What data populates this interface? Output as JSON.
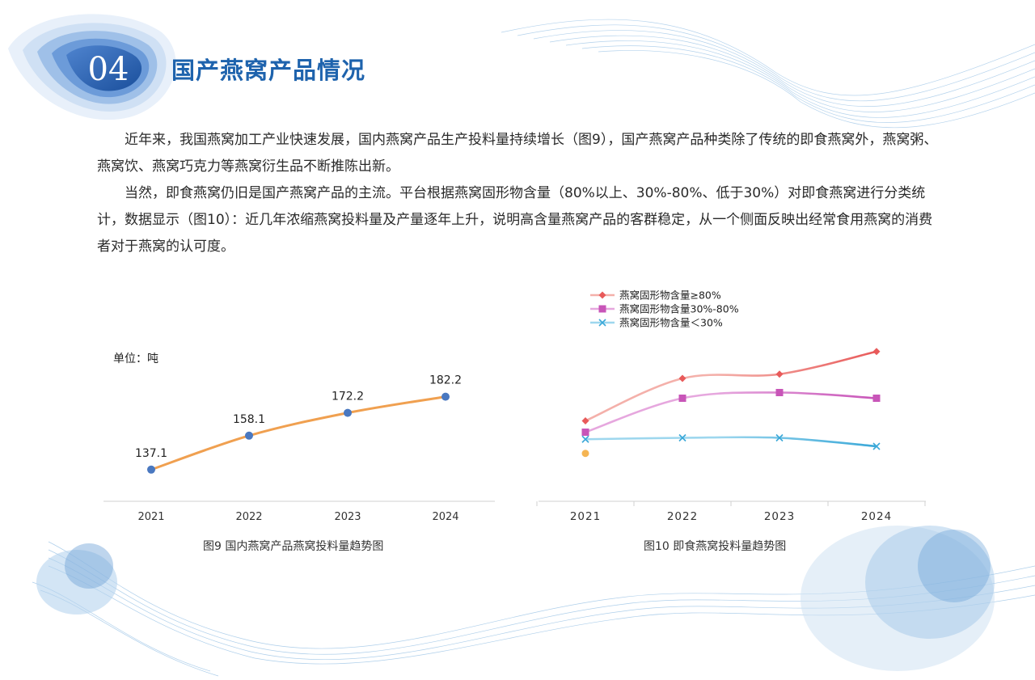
{
  "section": {
    "number": "04",
    "title": "国产燕窝产品情况"
  },
  "body": {
    "paragraphs": [
      "近年来，我国燕窝加工产业快速发展，国内燕窝产品生产投料量持续增长（图9），国产燕窝产品种类除了传统的即食燕窝外，燕窝粥、燕窝饮、燕窝巧克力等燕窝衍生品不断推陈出新。",
      "当然，即食燕窝仍旧是国产燕窝产品的主流。平台根据燕窝固形物含量（80%以上、30%-80%、低于30%）对即食燕窝进行分类统计，数据显示（图10）：近几年浓缩燕窝投料量及产量逐年上升，说明高含量燕窝产品的客群稳定，从一个侧面反映出经常食用燕窝的消费者对于燕窝的认可度。"
    ]
  },
  "colors": {
    "title_blue": "#1e63ad",
    "line_orange": "#f0a050",
    "dot_blue": "#4a78c0",
    "series_red": "#e85a5a",
    "series_magenta": "#c855b8",
    "series_cyan": "#3aa8d8"
  },
  "chart_data": [
    {
      "type": "line",
      "unit_label": "单位：吨",
      "caption": "图9  国内燕窝产品燕窝投料量趋势图",
      "categories": [
        "2021",
        "2022",
        "2023",
        "2024"
      ],
      "values": [
        137.1,
        158.1,
        172.2,
        182.2
      ],
      "data_labels": [
        "137.1",
        "158.1",
        "172.2",
        "182.2"
      ],
      "ylim": [
        130,
        190
      ],
      "grid": false
    },
    {
      "type": "line",
      "caption": "图10  即食燕窝投料量趋势图",
      "categories": [
        "2021",
        "2022",
        "2023",
        "2024"
      ],
      "legend_position": "top",
      "ylim": [
        0,
        100
      ],
      "grid": false,
      "series": [
        {
          "name": "燕窝固形物含量≥80%",
          "marker": "diamond",
          "values": [
            50,
            80,
            83,
            99
          ]
        },
        {
          "name": "燕窝固形物含量30%-80%",
          "marker": "square",
          "values": [
            42,
            66,
            70,
            66
          ]
        },
        {
          "name": "燕窝固形物含量＜30%",
          "marker": "x",
          "values": [
            37,
            38,
            38,
            32
          ]
        }
      ],
      "extra_point": {
        "x": "2021",
        "value": 27
      }
    }
  ]
}
